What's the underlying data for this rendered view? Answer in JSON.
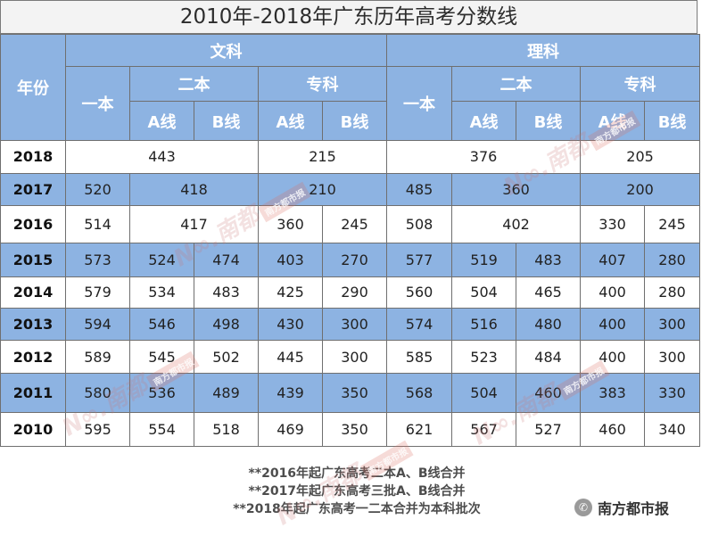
{
  "title": "2010年-2018年广东历年高考分数线",
  "header": {
    "year": "年份",
    "wenke": "文科",
    "like": "理科",
    "yiben": "一本",
    "erben": "二本",
    "zhuanke": "专科",
    "a_line": "A线",
    "b_line": "B线"
  },
  "rows": {
    "r2018": {
      "year": "2018",
      "wk_merged": "443",
      "wk_zk": "215",
      "lk_merged": "376",
      "lk_zk": "205"
    },
    "r2017": {
      "year": "2017",
      "wk_yb": "520",
      "wk_eb": "418",
      "wk_zk": "210",
      "lk_yb": "485",
      "lk_eb": "360",
      "lk_zk": "200"
    },
    "r2016": {
      "year": "2016",
      "wk_yb": "514",
      "wk_eb": "417",
      "wk_za": "360",
      "wk_zb": "245",
      "lk_yb": "508",
      "lk_eb": "402",
      "lk_za": "330",
      "lk_zb": "245"
    },
    "r2015": {
      "year": "2015",
      "v": [
        "573",
        "524",
        "474",
        "403",
        "270",
        "577",
        "519",
        "483",
        "407",
        "280"
      ]
    },
    "r2014": {
      "year": "2014",
      "v": [
        "579",
        "534",
        "483",
        "425",
        "290",
        "560",
        "504",
        "465",
        "400",
        "280"
      ]
    },
    "r2013": {
      "year": "2013",
      "v": [
        "594",
        "546",
        "498",
        "430",
        "300",
        "574",
        "516",
        "480",
        "400",
        "300"
      ]
    },
    "r2012": {
      "year": "2012",
      "v": [
        "589",
        "545",
        "502",
        "445",
        "300",
        "585",
        "523",
        "484",
        "400",
        "300"
      ]
    },
    "r2011": {
      "year": "2011",
      "v": [
        "580",
        "536",
        "489",
        "439",
        "350",
        "568",
        "504",
        "460",
        "383",
        "330"
      ]
    },
    "r2010": {
      "year": "2010",
      "v": [
        "595",
        "554",
        "518",
        "469",
        "350",
        "621",
        "567",
        "527",
        "460",
        "340"
      ]
    }
  },
  "notes": [
    "**2016年起广东高考二本A、B线合并",
    "**2017年起广东高考三批A、B线合并",
    "**2018年起广东高考一二本合并为本科批次"
  ],
  "brand": {
    "icon": "wechat-icon",
    "name": "南方都市报"
  },
  "watermark": {
    "logo": "N∞.南都",
    "tag": "南方都市报"
  },
  "colors": {
    "header_blue": "#8db3e2",
    "white": "#ffffff"
  }
}
